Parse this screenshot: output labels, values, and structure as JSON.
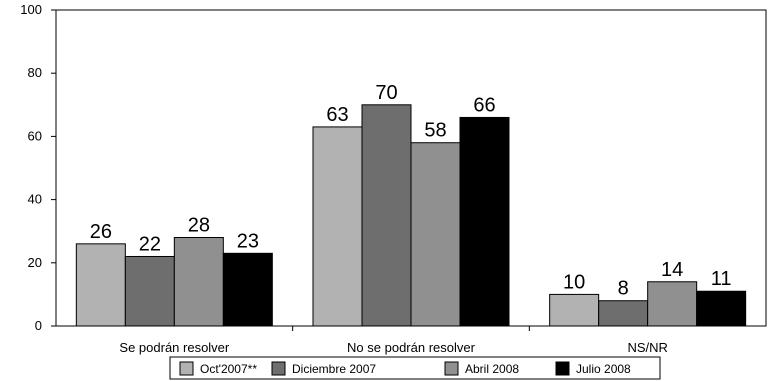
{
  "chart_data": {
    "type": "bar",
    "categories": [
      "Se podrán resolver",
      "No se podrán resolver",
      "NS/NR"
    ],
    "series": [
      {
        "name": "Oct'2007**",
        "values": [
          26,
          63,
          10
        ],
        "color": "#b2b2b2"
      },
      {
        "name": "Diciembre 2007",
        "values": [
          22,
          70,
          8
        ],
        "color": "#6e6e6e"
      },
      {
        "name": "Abril 2008",
        "values": [
          28,
          58,
          14
        ],
        "color": "#909090"
      },
      {
        "name": "Julio 2008",
        "values": [
          23,
          66,
          11
        ],
        "color": "#000000"
      }
    ],
    "ylim": [
      0,
      100
    ],
    "yticks": [
      0,
      20,
      40,
      60,
      80,
      100
    ],
    "grid": false,
    "legend_position": "bottom"
  }
}
